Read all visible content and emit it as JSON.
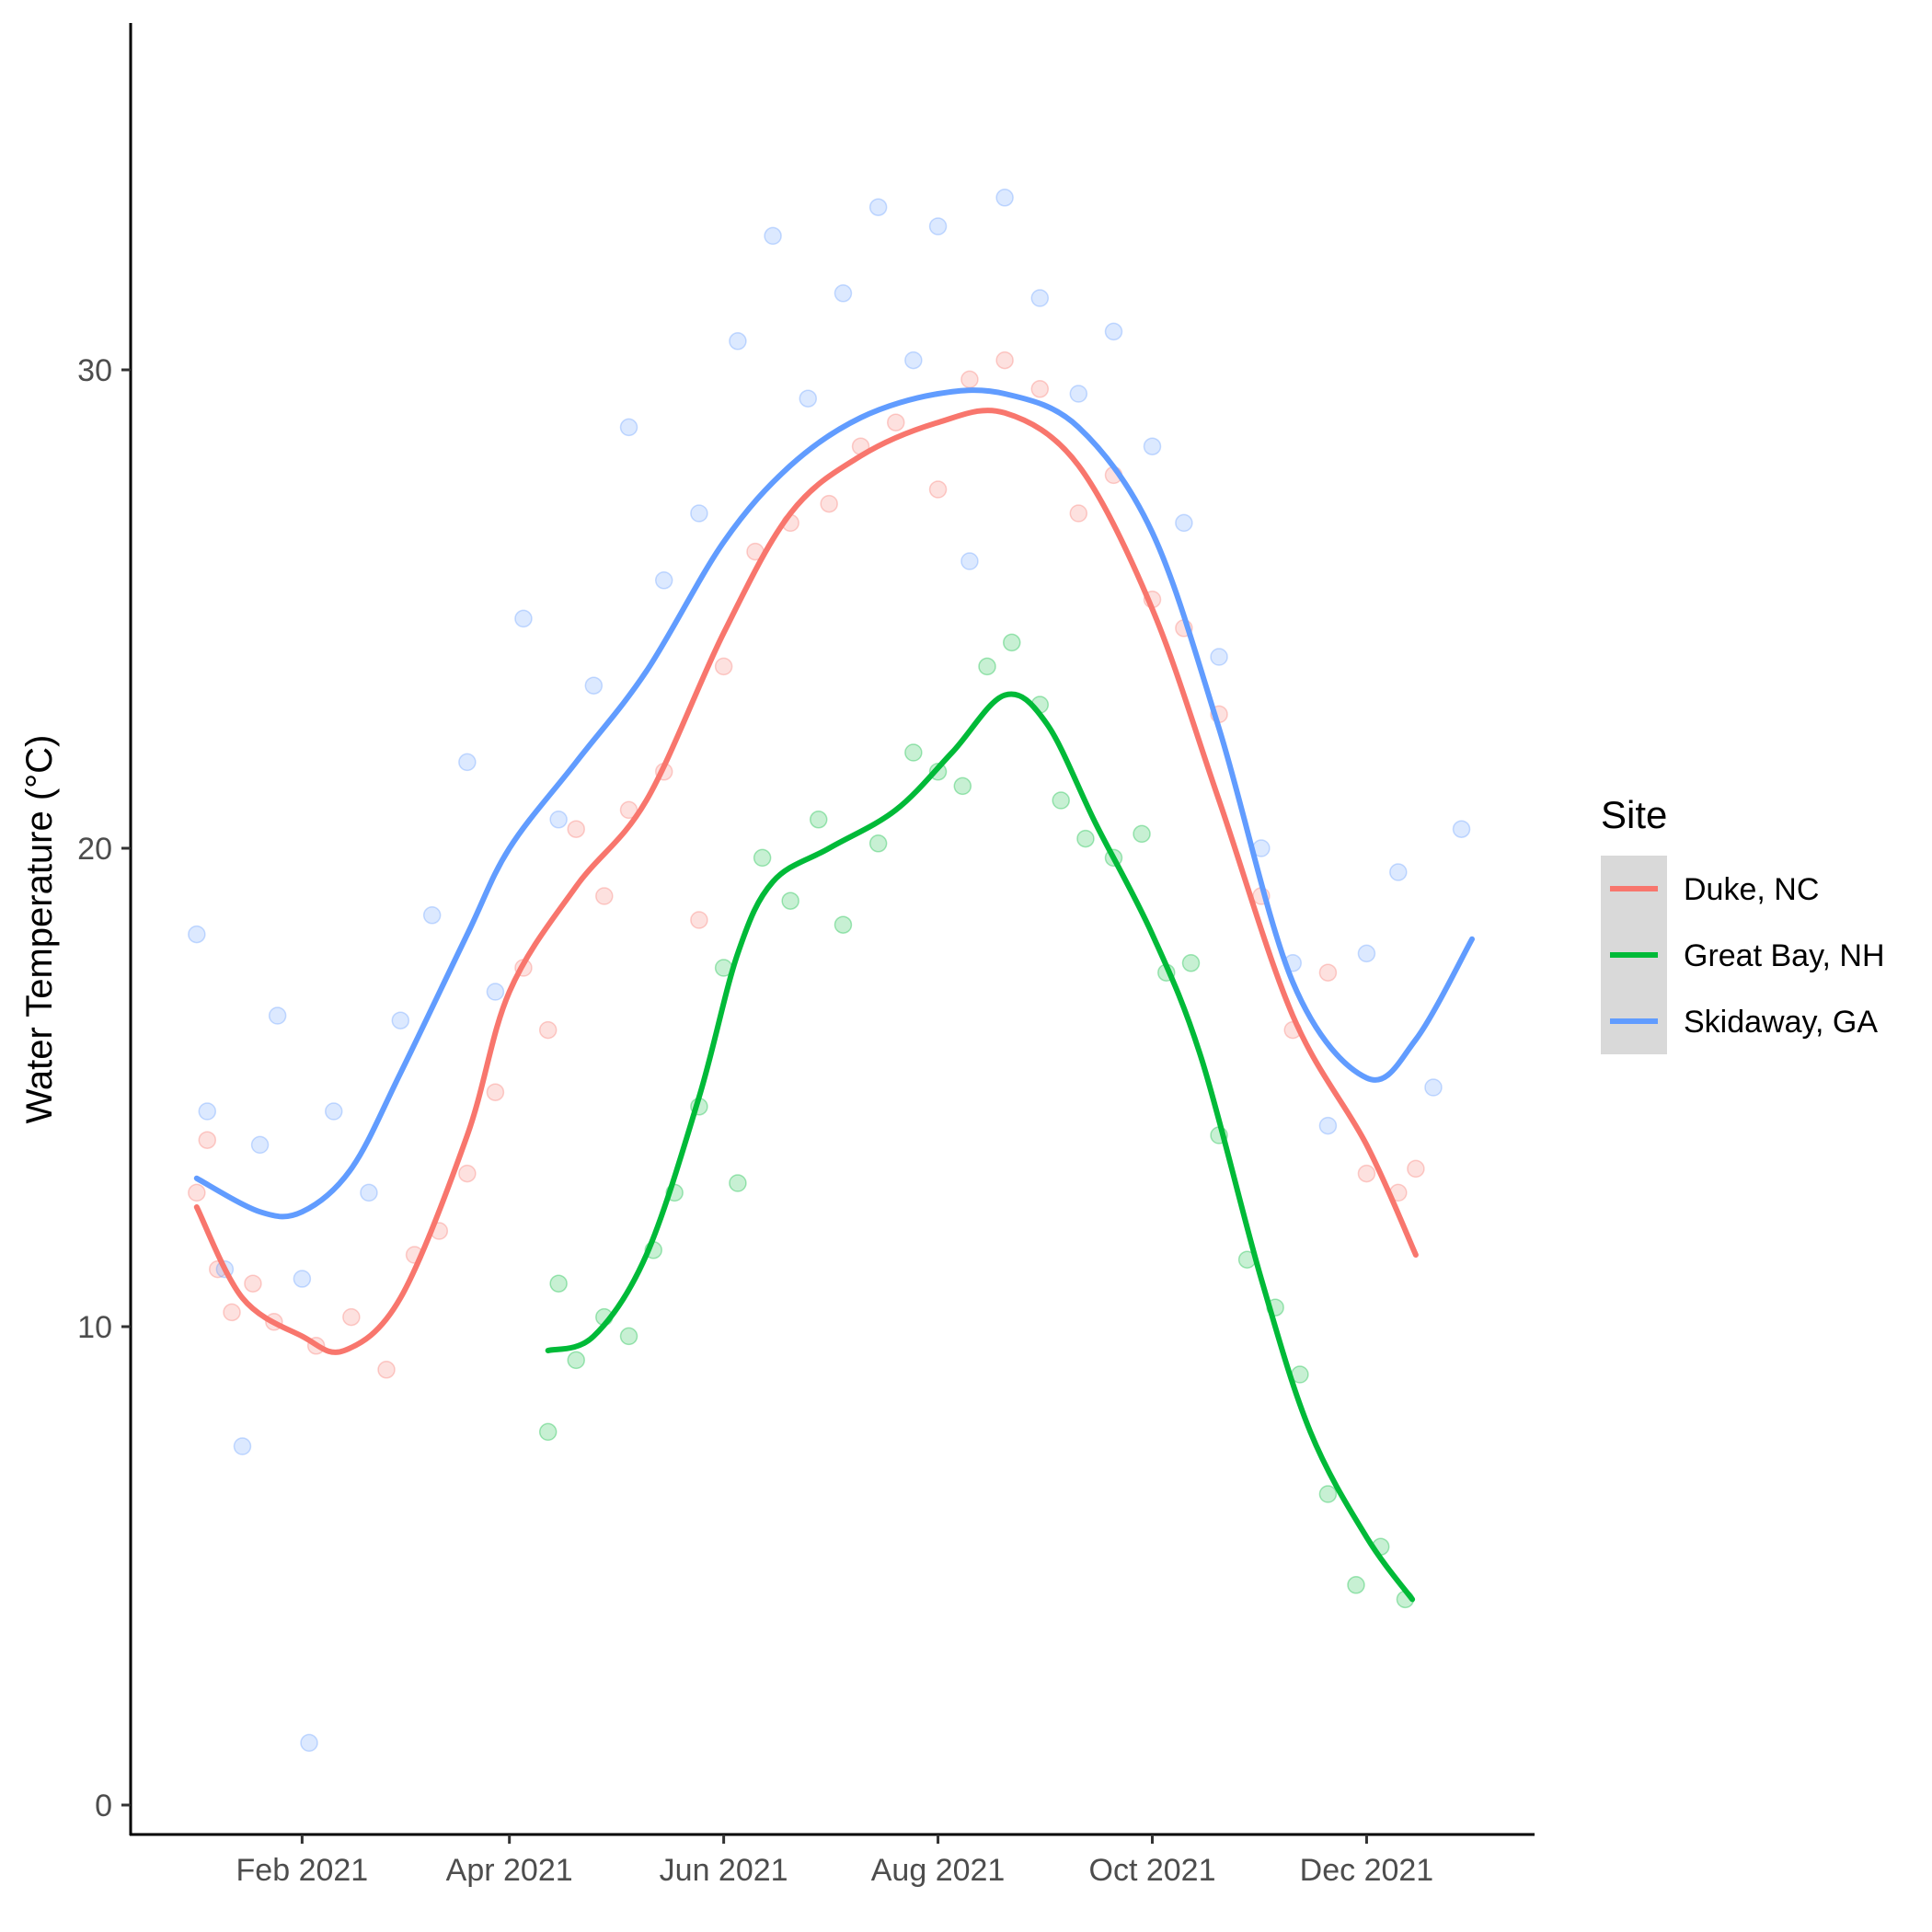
{
  "chart_data": {
    "type": "scatter",
    "title": "",
    "xlabel": "",
    "ylabel": "Water Temperature (°C)",
    "x_range": [
      "2021-01-01",
      "2021-12-31"
    ],
    "ylim": [
      0,
      34
    ],
    "x_ticks": [
      "Feb 2021",
      "Apr 2021",
      "Jun 2021",
      "Aug 2021",
      "Oct 2021",
      "Dec 2021"
    ],
    "y_ticks": [
      0,
      10,
      20,
      30
    ],
    "grid": false,
    "legend": {
      "title": "Site",
      "position": "right"
    },
    "series": [
      {
        "name": "Duke, NC",
        "color": "#F8766D",
        "smooth": [
          {
            "x": "2021-01-02",
            "y": 12.5
          },
          {
            "x": "2021-01-15",
            "y": 10.6
          },
          {
            "x": "2021-02-01",
            "y": 9.8
          },
          {
            "x": "2021-02-13",
            "y": 9.5
          },
          {
            "x": "2021-03-01",
            "y": 10.6
          },
          {
            "x": "2021-03-20",
            "y": 14.0
          },
          {
            "x": "2021-04-01",
            "y": 17.0
          },
          {
            "x": "2021-04-20",
            "y": 19.2
          },
          {
            "x": "2021-05-10",
            "y": 21.0
          },
          {
            "x": "2021-06-01",
            "y": 24.5
          },
          {
            "x": "2021-06-20",
            "y": 27.0
          },
          {
            "x": "2021-07-10",
            "y": 28.2
          },
          {
            "x": "2021-08-01",
            "y": 28.9
          },
          {
            "x": "2021-08-20",
            "y": 29.1
          },
          {
            "x": "2021-09-10",
            "y": 28.0
          },
          {
            "x": "2021-10-01",
            "y": 25.0
          },
          {
            "x": "2021-10-20",
            "y": 21.0
          },
          {
            "x": "2021-11-10",
            "y": 16.5
          },
          {
            "x": "2021-12-01",
            "y": 13.8
          },
          {
            "x": "2021-12-15",
            "y": 11.5
          }
        ],
        "points": [
          {
            "x": "2021-01-02",
            "y": 12.8
          },
          {
            "x": "2021-01-05",
            "y": 13.9
          },
          {
            "x": "2021-01-08",
            "y": 11.2
          },
          {
            "x": "2021-01-12",
            "y": 10.3
          },
          {
            "x": "2021-01-18",
            "y": 10.9
          },
          {
            "x": "2021-01-24",
            "y": 10.1
          },
          {
            "x": "2021-02-05",
            "y": 9.6
          },
          {
            "x": "2021-02-15",
            "y": 10.2
          },
          {
            "x": "2021-02-25",
            "y": 9.1
          },
          {
            "x": "2021-03-05",
            "y": 11.5
          },
          {
            "x": "2021-03-12",
            "y": 12.0
          },
          {
            "x": "2021-03-20",
            "y": 13.2
          },
          {
            "x": "2021-03-28",
            "y": 14.9
          },
          {
            "x": "2021-04-05",
            "y": 17.5
          },
          {
            "x": "2021-04-12",
            "y": 16.2
          },
          {
            "x": "2021-04-20",
            "y": 20.4
          },
          {
            "x": "2021-04-28",
            "y": 19.0
          },
          {
            "x": "2021-05-05",
            "y": 20.8
          },
          {
            "x": "2021-05-15",
            "y": 21.6
          },
          {
            "x": "2021-05-25",
            "y": 18.5
          },
          {
            "x": "2021-06-01",
            "y": 23.8
          },
          {
            "x": "2021-06-10",
            "y": 26.2
          },
          {
            "x": "2021-06-20",
            "y": 26.8
          },
          {
            "x": "2021-07-01",
            "y": 27.2
          },
          {
            "x": "2021-07-10",
            "y": 28.4
          },
          {
            "x": "2021-07-20",
            "y": 28.9
          },
          {
            "x": "2021-08-01",
            "y": 27.5
          },
          {
            "x": "2021-08-10",
            "y": 29.8
          },
          {
            "x": "2021-08-20",
            "y": 30.2
          },
          {
            "x": "2021-08-30",
            "y": 29.6
          },
          {
            "x": "2021-09-10",
            "y": 27.0
          },
          {
            "x": "2021-09-20",
            "y": 27.8
          },
          {
            "x": "2021-10-01",
            "y": 25.2
          },
          {
            "x": "2021-10-10",
            "y": 24.6
          },
          {
            "x": "2021-10-20",
            "y": 22.8
          },
          {
            "x": "2021-11-01",
            "y": 19.0
          },
          {
            "x": "2021-11-10",
            "y": 16.2
          },
          {
            "x": "2021-11-20",
            "y": 17.4
          },
          {
            "x": "2021-12-01",
            "y": 13.2
          },
          {
            "x": "2021-12-10",
            "y": 12.8
          },
          {
            "x": "2021-12-15",
            "y": 13.3
          }
        ]
      },
      {
        "name": "Great Bay, NH",
        "color": "#00BA38",
        "smooth": [
          {
            "x": "2021-04-12",
            "y": 9.5
          },
          {
            "x": "2021-04-25",
            "y": 9.8
          },
          {
            "x": "2021-05-10",
            "y": 11.5
          },
          {
            "x": "2021-05-25",
            "y": 14.8
          },
          {
            "x": "2021-06-05",
            "y": 17.8
          },
          {
            "x": "2021-06-15",
            "y": 19.3
          },
          {
            "x": "2021-07-01",
            "y": 20.0
          },
          {
            "x": "2021-07-20",
            "y": 20.8
          },
          {
            "x": "2021-08-05",
            "y": 22.0
          },
          {
            "x": "2021-08-20",
            "y": 23.2
          },
          {
            "x": "2021-09-01",
            "y": 22.6
          },
          {
            "x": "2021-09-15",
            "y": 20.5
          },
          {
            "x": "2021-10-01",
            "y": 18.2
          },
          {
            "x": "2021-10-15",
            "y": 15.6
          },
          {
            "x": "2021-11-01",
            "y": 11.0
          },
          {
            "x": "2021-11-15",
            "y": 7.8
          },
          {
            "x": "2021-12-01",
            "y": 5.6
          },
          {
            "x": "2021-12-14",
            "y": 4.3
          }
        ],
        "points": [
          {
            "x": "2021-04-12",
            "y": 7.8
          },
          {
            "x": "2021-04-15",
            "y": 10.9
          },
          {
            "x": "2021-04-20",
            "y": 9.3
          },
          {
            "x": "2021-04-28",
            "y": 10.2
          },
          {
            "x": "2021-05-05",
            "y": 9.8
          },
          {
            "x": "2021-05-12",
            "y": 11.6
          },
          {
            "x": "2021-05-18",
            "y": 12.8
          },
          {
            "x": "2021-05-25",
            "y": 14.6
          },
          {
            "x": "2021-06-01",
            "y": 17.5
          },
          {
            "x": "2021-06-05",
            "y": 13.0
          },
          {
            "x": "2021-06-12",
            "y": 19.8
          },
          {
            "x": "2021-06-20",
            "y": 18.9
          },
          {
            "x": "2021-06-28",
            "y": 20.6
          },
          {
            "x": "2021-07-05",
            "y": 18.4
          },
          {
            "x": "2021-07-15",
            "y": 20.1
          },
          {
            "x": "2021-07-25",
            "y": 22.0
          },
          {
            "x": "2021-08-01",
            "y": 21.6
          },
          {
            "x": "2021-08-08",
            "y": 21.3
          },
          {
            "x": "2021-08-15",
            "y": 23.8
          },
          {
            "x": "2021-08-22",
            "y": 24.3
          },
          {
            "x": "2021-08-30",
            "y": 23.0
          },
          {
            "x": "2021-09-05",
            "y": 21.0
          },
          {
            "x": "2021-09-12",
            "y": 20.2
          },
          {
            "x": "2021-09-20",
            "y": 19.8
          },
          {
            "x": "2021-09-28",
            "y": 20.3
          },
          {
            "x": "2021-10-05",
            "y": 17.4
          },
          {
            "x": "2021-10-12",
            "y": 17.6
          },
          {
            "x": "2021-10-20",
            "y": 14.0
          },
          {
            "x": "2021-10-28",
            "y": 11.4
          },
          {
            "x": "2021-11-05",
            "y": 10.4
          },
          {
            "x": "2021-11-12",
            "y": 9.0
          },
          {
            "x": "2021-11-20",
            "y": 6.5
          },
          {
            "x": "2021-11-28",
            "y": 4.6
          },
          {
            "x": "2021-12-05",
            "y": 5.4
          },
          {
            "x": "2021-12-12",
            "y": 4.3
          }
        ]
      },
      {
        "name": "Skidaway, GA",
        "color": "#619CFF",
        "smooth": [
          {
            "x": "2021-01-02",
            "y": 13.1
          },
          {
            "x": "2021-01-20",
            "y": 12.4
          },
          {
            "x": "2021-02-01",
            "y": 12.4
          },
          {
            "x": "2021-02-15",
            "y": 13.3
          },
          {
            "x": "2021-03-01",
            "y": 15.3
          },
          {
            "x": "2021-03-20",
            "y": 18.2
          },
          {
            "x": "2021-04-01",
            "y": 20.0
          },
          {
            "x": "2021-04-20",
            "y": 21.8
          },
          {
            "x": "2021-05-10",
            "y": 23.7
          },
          {
            "x": "2021-06-01",
            "y": 26.4
          },
          {
            "x": "2021-06-20",
            "y": 28.0
          },
          {
            "x": "2021-07-10",
            "y": 29.0
          },
          {
            "x": "2021-08-01",
            "y": 29.5
          },
          {
            "x": "2021-08-20",
            "y": 29.5
          },
          {
            "x": "2021-09-10",
            "y": 28.8
          },
          {
            "x": "2021-10-01",
            "y": 26.6
          },
          {
            "x": "2021-10-20",
            "y": 22.5
          },
          {
            "x": "2021-11-10",
            "y": 17.2
          },
          {
            "x": "2021-12-01",
            "y": 15.2
          },
          {
            "x": "2021-12-15",
            "y": 16.0
          },
          {
            "x": "2021-12-31",
            "y": 18.1
          }
        ],
        "points": [
          {
            "x": "2021-01-02",
            "y": 18.2
          },
          {
            "x": "2021-01-05",
            "y": 14.5
          },
          {
            "x": "2021-01-10",
            "y": 11.2
          },
          {
            "x": "2021-01-15",
            "y": 7.5
          },
          {
            "x": "2021-01-20",
            "y": 13.8
          },
          {
            "x": "2021-01-25",
            "y": 16.5
          },
          {
            "x": "2021-02-01",
            "y": 11.0
          },
          {
            "x": "2021-02-03",
            "y": 1.3
          },
          {
            "x": "2021-02-10",
            "y": 14.5
          },
          {
            "x": "2021-02-20",
            "y": 12.8
          },
          {
            "x": "2021-03-01",
            "y": 16.4
          },
          {
            "x": "2021-03-10",
            "y": 18.6
          },
          {
            "x": "2021-03-20",
            "y": 21.8
          },
          {
            "x": "2021-03-28",
            "y": 17.0
          },
          {
            "x": "2021-04-05",
            "y": 24.8
          },
          {
            "x": "2021-04-15",
            "y": 20.6
          },
          {
            "x": "2021-04-25",
            "y": 23.4
          },
          {
            "x": "2021-05-05",
            "y": 28.8
          },
          {
            "x": "2021-05-15",
            "y": 25.6
          },
          {
            "x": "2021-05-25",
            "y": 27.0
          },
          {
            "x": "2021-06-05",
            "y": 30.6
          },
          {
            "x": "2021-06-15",
            "y": 32.8
          },
          {
            "x": "2021-06-25",
            "y": 29.4
          },
          {
            "x": "2021-07-05",
            "y": 31.6
          },
          {
            "x": "2021-07-15",
            "y": 33.4
          },
          {
            "x": "2021-07-25",
            "y": 30.2
          },
          {
            "x": "2021-08-01",
            "y": 33.0
          },
          {
            "x": "2021-08-10",
            "y": 26.0
          },
          {
            "x": "2021-08-20",
            "y": 33.6
          },
          {
            "x": "2021-08-30",
            "y": 31.5
          },
          {
            "x": "2021-09-10",
            "y": 29.5
          },
          {
            "x": "2021-09-20",
            "y": 30.8
          },
          {
            "x": "2021-10-01",
            "y": 28.4
          },
          {
            "x": "2021-10-10",
            "y": 26.8
          },
          {
            "x": "2021-10-20",
            "y": 24.0
          },
          {
            "x": "2021-11-01",
            "y": 20.0
          },
          {
            "x": "2021-11-10",
            "y": 17.6
          },
          {
            "x": "2021-11-20",
            "y": 14.2
          },
          {
            "x": "2021-12-01",
            "y": 17.8
          },
          {
            "x": "2021-12-10",
            "y": 19.5
          },
          {
            "x": "2021-12-20",
            "y": 15.0
          },
          {
            "x": "2021-12-28",
            "y": 20.4
          }
        ]
      }
    ]
  }
}
